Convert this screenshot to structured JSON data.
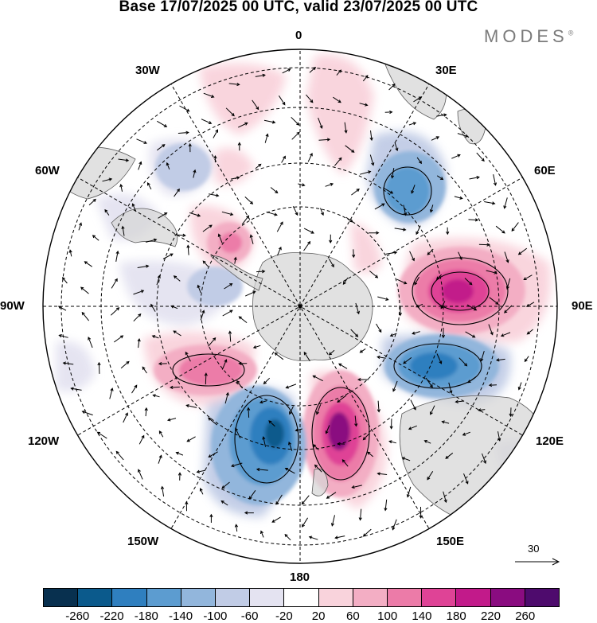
{
  "header": {
    "title": "Base 17/07/2025 00 UTC, valid 23/07/2025 00 UTC",
    "brand": "MODES",
    "brand_mark": "®"
  },
  "map": {
    "projection": "south-polar-stereographic",
    "longitude_labels": {
      "top": "0",
      "top_right": "30E",
      "upper_right": "60E",
      "right": "90E",
      "lower_right": "120E",
      "bottom_right": "150E",
      "bottom": "180",
      "bottom_left": "150W",
      "lower_left": "120W",
      "left": "90W",
      "upper_left": "60W",
      "top_left": "30W"
    },
    "anomaly_centers": [
      {
        "sign": "positive",
        "sector": "90E",
        "peak": 220
      },
      {
        "sign": "negative",
        "sector": "110E",
        "peak": -180
      },
      {
        "sign": "positive",
        "sector": "160E",
        "peak": 240
      },
      {
        "sign": "negative",
        "sector": "160W",
        "peak": -200
      },
      {
        "sign": "positive",
        "sector": "115W",
        "peak": 120
      },
      {
        "sign": "negative",
        "sector": "45E",
        "peak": -120
      },
      {
        "sign": "positive",
        "sector": "40W",
        "peak": 140
      }
    ]
  },
  "reference_vector": {
    "label": "30"
  },
  "colorbar": {
    "tick_labels": [
      "-260",
      "-220",
      "-180",
      "-140",
      "-100",
      "-60",
      "-20",
      "20",
      "60",
      "100",
      "140",
      "180",
      "220",
      "260"
    ],
    "colors": [
      "#08304f",
      "#0b5a8c",
      "#2f7fbf",
      "#5c9cd0",
      "#92b6dc",
      "#c1cce6",
      "#e4e3f1",
      "#ffffff",
      "#f9d3dc",
      "#f3aec4",
      "#ec7ba8",
      "#df4396",
      "#c21a8a",
      "#8a0c80",
      "#4e0b6d"
    ]
  }
}
